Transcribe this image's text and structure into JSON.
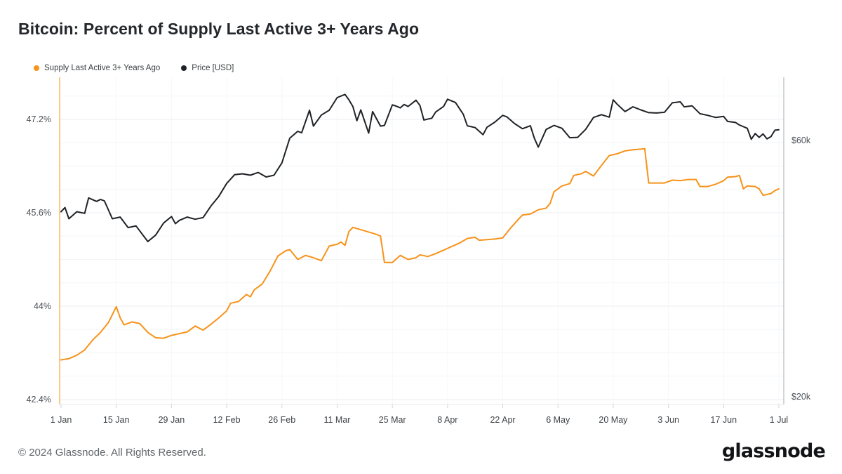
{
  "title": "Bitcoin: Percent of Supply Last Active 3+ Years Ago",
  "legend": [
    {
      "label": "Supply Last Active 3+ Years Ago",
      "color": "#f7931a"
    },
    {
      "label": "Price [USD]",
      "color": "#1f2226"
    }
  ],
  "footer": {
    "copyright": "© 2024 Glassnode. All Rights Reserved.",
    "brand": "glassnode"
  },
  "chart_data": {
    "type": "line",
    "title": "Bitcoin: Percent of Supply Last Active 3+ Years Ago",
    "grid": "on",
    "legend_position": "top-left",
    "x_start_date": "1 Jan 2024",
    "x_ticks": [
      {
        "day": 0,
        "label": "1 Jan"
      },
      {
        "day": 14,
        "label": "15 Jan"
      },
      {
        "day": 28,
        "label": "29 Jan"
      },
      {
        "day": 42,
        "label": "12 Feb"
      },
      {
        "day": 56,
        "label": "26 Feb"
      },
      {
        "day": 70,
        "label": "11 Mar"
      },
      {
        "day": 84,
        "label": "25 Mar"
      },
      {
        "day": 98,
        "label": "8 Apr"
      },
      {
        "day": 112,
        "label": "22 Apr"
      },
      {
        "day": 126,
        "label": "6 May"
      },
      {
        "day": 140,
        "label": "20 May"
      },
      {
        "day": 154,
        "label": "3 Jun"
      },
      {
        "day": 168,
        "label": "17 Jun"
      },
      {
        "day": 182,
        "label": "1 Jul"
      }
    ],
    "left_axis": {
      "unit": "%",
      "scale": "linear",
      "ylim": [
        42.4,
        47.92
      ],
      "minor_step": 0.4,
      "ticks": [
        {
          "value": 47.2,
          "label": "47.2%"
        },
        {
          "value": 45.6,
          "label": "45.6%"
        },
        {
          "value": 44,
          "label": "44%"
        },
        {
          "value": 42.4,
          "label": "42.4%"
        }
      ]
    },
    "right_axis": {
      "unit": "USD",
      "scale": "log",
      "ylim_usd_k": [
        19.3,
        78.7
      ],
      "ticks": [
        {
          "value": 60,
          "label": "$60k"
        },
        {
          "value": 20,
          "label": "$20k"
        }
      ]
    },
    "series": [
      {
        "name": "Supply Last Active 3+ Years Ago",
        "axis": "left",
        "unit": "%",
        "color": "#f7931a",
        "points": [
          [
            0,
            43.08
          ],
          [
            2,
            43.1
          ],
          [
            4,
            43.16
          ],
          [
            6,
            43.25
          ],
          [
            8,
            43.42
          ],
          [
            10,
            43.55
          ],
          [
            12,
            43.72
          ],
          [
            14,
            43.99
          ],
          [
            15,
            43.8
          ],
          [
            16,
            43.68
          ],
          [
            18,
            43.73
          ],
          [
            20,
            43.7
          ],
          [
            22,
            43.55
          ],
          [
            24,
            43.46
          ],
          [
            26,
            43.45
          ],
          [
            28,
            43.5
          ],
          [
            30,
            43.53
          ],
          [
            32,
            43.56
          ],
          [
            34,
            43.66
          ],
          [
            36,
            43.59
          ],
          [
            38,
            43.69
          ],
          [
            40,
            43.8
          ],
          [
            42,
            43.92
          ],
          [
            43,
            44.05
          ],
          [
            45,
            44.08
          ],
          [
            47,
            44.2
          ],
          [
            48,
            44.16
          ],
          [
            49,
            44.28
          ],
          [
            51,
            44.38
          ],
          [
            53,
            44.6
          ],
          [
            55,
            44.86
          ],
          [
            57,
            44.95
          ],
          [
            58,
            44.97
          ],
          [
            60,
            44.8
          ],
          [
            62,
            44.87
          ],
          [
            64,
            44.83
          ],
          [
            66,
            44.78
          ],
          [
            68,
            45.03
          ],
          [
            70,
            45.06
          ],
          [
            71,
            45.1
          ],
          [
            72,
            45.04
          ],
          [
            73,
            45.28
          ],
          [
            74,
            45.35
          ],
          [
            76,
            45.31
          ],
          [
            78,
            45.27
          ],
          [
            80,
            45.23
          ],
          [
            81,
            45.2
          ],
          [
            82,
            44.75
          ],
          [
            84,
            44.75
          ],
          [
            86,
            44.87
          ],
          [
            88,
            44.8
          ],
          [
            90,
            44.83
          ],
          [
            91,
            44.88
          ],
          [
            93,
            44.85
          ],
          [
            95,
            44.9
          ],
          [
            97,
            44.96
          ],
          [
            99,
            45.02
          ],
          [
            101,
            45.08
          ],
          [
            103,
            45.16
          ],
          [
            105,
            45.18
          ],
          [
            106,
            45.13
          ],
          [
            108,
            45.14
          ],
          [
            110,
            45.15
          ],
          [
            112,
            45.17
          ],
          [
            114,
            45.34
          ],
          [
            116,
            45.49
          ],
          [
            117,
            45.56
          ],
          [
            119,
            45.58
          ],
          [
            121,
            45.65
          ],
          [
            123,
            45.68
          ],
          [
            124,
            45.76
          ],
          [
            125,
            45.96
          ],
          [
            127,
            46.06
          ],
          [
            129,
            46.1
          ],
          [
            130,
            46.24
          ],
          [
            132,
            46.27
          ],
          [
            133,
            46.31
          ],
          [
            135,
            46.23
          ],
          [
            137,
            46.41
          ],
          [
            139,
            46.58
          ],
          [
            141,
            46.61
          ],
          [
            143,
            46.66
          ],
          [
            145,
            46.68
          ],
          [
            147,
            46.69
          ],
          [
            148,
            46.7
          ],
          [
            149,
            46.11
          ],
          [
            151,
            46.11
          ],
          [
            153,
            46.11
          ],
          [
            155,
            46.16
          ],
          [
            157,
            46.15
          ],
          [
            159,
            46.17
          ],
          [
            161,
            46.17
          ],
          [
            162,
            46.05
          ],
          [
            164,
            46.05
          ],
          [
            166,
            46.09
          ],
          [
            168,
            46.15
          ],
          [
            169,
            46.21
          ],
          [
            171,
            46.22
          ],
          [
            172,
            46.24
          ],
          [
            173,
            46.01
          ],
          [
            174,
            46.06
          ],
          [
            176,
            46.05
          ],
          [
            177,
            46.01
          ],
          [
            178,
            45.9
          ],
          [
            180,
            45.93
          ],
          [
            181,
            45.98
          ],
          [
            182,
            46.01
          ]
        ]
      },
      {
        "name": "Price [USD]",
        "axis": "right",
        "unit": "USD (thousands)",
        "color": "#1f2226",
        "points": [
          [
            0,
            44.2
          ],
          [
            1,
            45.0
          ],
          [
            2,
            42.9
          ],
          [
            4,
            44.2
          ],
          [
            6,
            43.9
          ],
          [
            7,
            46.9
          ],
          [
            9,
            46.2
          ],
          [
            10,
            46.6
          ],
          [
            11,
            46.3
          ],
          [
            13,
            42.9
          ],
          [
            15,
            43.2
          ],
          [
            17,
            41.3
          ],
          [
            19,
            41.6
          ],
          [
            22,
            38.9
          ],
          [
            24,
            40.0
          ],
          [
            26,
            42.1
          ],
          [
            28,
            43.3
          ],
          [
            29,
            42.0
          ],
          [
            30,
            42.6
          ],
          [
            32,
            43.2
          ],
          [
            34,
            42.8
          ],
          [
            36,
            43.1
          ],
          [
            38,
            45.3
          ],
          [
            40,
            47.2
          ],
          [
            42,
            49.9
          ],
          [
            44,
            51.8
          ],
          [
            46,
            52.0
          ],
          [
            48,
            51.7
          ],
          [
            50,
            52.3
          ],
          [
            52,
            51.3
          ],
          [
            54,
            51.7
          ],
          [
            56,
            54.5
          ],
          [
            58,
            60.6
          ],
          [
            60,
            62.4
          ],
          [
            61,
            62.0
          ],
          [
            63,
            68.3
          ],
          [
            64,
            63.8
          ],
          [
            66,
            66.9
          ],
          [
            68,
            68.3
          ],
          [
            70,
            72.1
          ],
          [
            72,
            73.1
          ],
          [
            73,
            71.4
          ],
          [
            74,
            69.4
          ],
          [
            75,
            65.3
          ],
          [
            76,
            68.4
          ],
          [
            78,
            61.9
          ],
          [
            79,
            67.9
          ],
          [
            81,
            63.8
          ],
          [
            82,
            64.0
          ],
          [
            84,
            69.9
          ],
          [
            85,
            69.5
          ],
          [
            86,
            69.0
          ],
          [
            87,
            70.0
          ],
          [
            88,
            69.4
          ],
          [
            90,
            71.3
          ],
          [
            91,
            69.7
          ],
          [
            92,
            65.5
          ],
          [
            94,
            66.0
          ],
          [
            95,
            67.8
          ],
          [
            97,
            69.4
          ],
          [
            98,
            71.6
          ],
          [
            100,
            70.6
          ],
          [
            102,
            67.1
          ],
          [
            103,
            63.9
          ],
          [
            105,
            63.4
          ],
          [
            107,
            61.5
          ],
          [
            108,
            63.5
          ],
          [
            110,
            64.9
          ],
          [
            112,
            66.8
          ],
          [
            113,
            66.4
          ],
          [
            115,
            64.5
          ],
          [
            117,
            63.1
          ],
          [
            119,
            63.9
          ],
          [
            120,
            60.6
          ],
          [
            121,
            58.3
          ],
          [
            123,
            62.9
          ],
          [
            125,
            64.0
          ],
          [
            127,
            63.2
          ],
          [
            129,
            60.7
          ],
          [
            131,
            60.8
          ],
          [
            133,
            62.9
          ],
          [
            135,
            66.2
          ],
          [
            137,
            67.0
          ],
          [
            139,
            66.3
          ],
          [
            140,
            71.4
          ],
          [
            141,
            70.1
          ],
          [
            143,
            67.9
          ],
          [
            145,
            69.3
          ],
          [
            147,
            68.4
          ],
          [
            149,
            67.6
          ],
          [
            151,
            67.5
          ],
          [
            153,
            67.7
          ],
          [
            155,
            70.5
          ],
          [
            157,
            70.8
          ],
          [
            158,
            69.3
          ],
          [
            160,
            69.6
          ],
          [
            162,
            67.3
          ],
          [
            164,
            66.8
          ],
          [
            166,
            66.2
          ],
          [
            168,
            66.5
          ],
          [
            169,
            65.1
          ],
          [
            171,
            64.8
          ],
          [
            172,
            64.1
          ],
          [
            174,
            63.2
          ],
          [
            175,
            60.3
          ],
          [
            176,
            61.8
          ],
          [
            177,
            60.8
          ],
          [
            178,
            61.7
          ],
          [
            179,
            60.4
          ],
          [
            180,
            61.0
          ],
          [
            181,
            62.7
          ],
          [
            182,
            62.8
          ]
        ]
      }
    ]
  }
}
